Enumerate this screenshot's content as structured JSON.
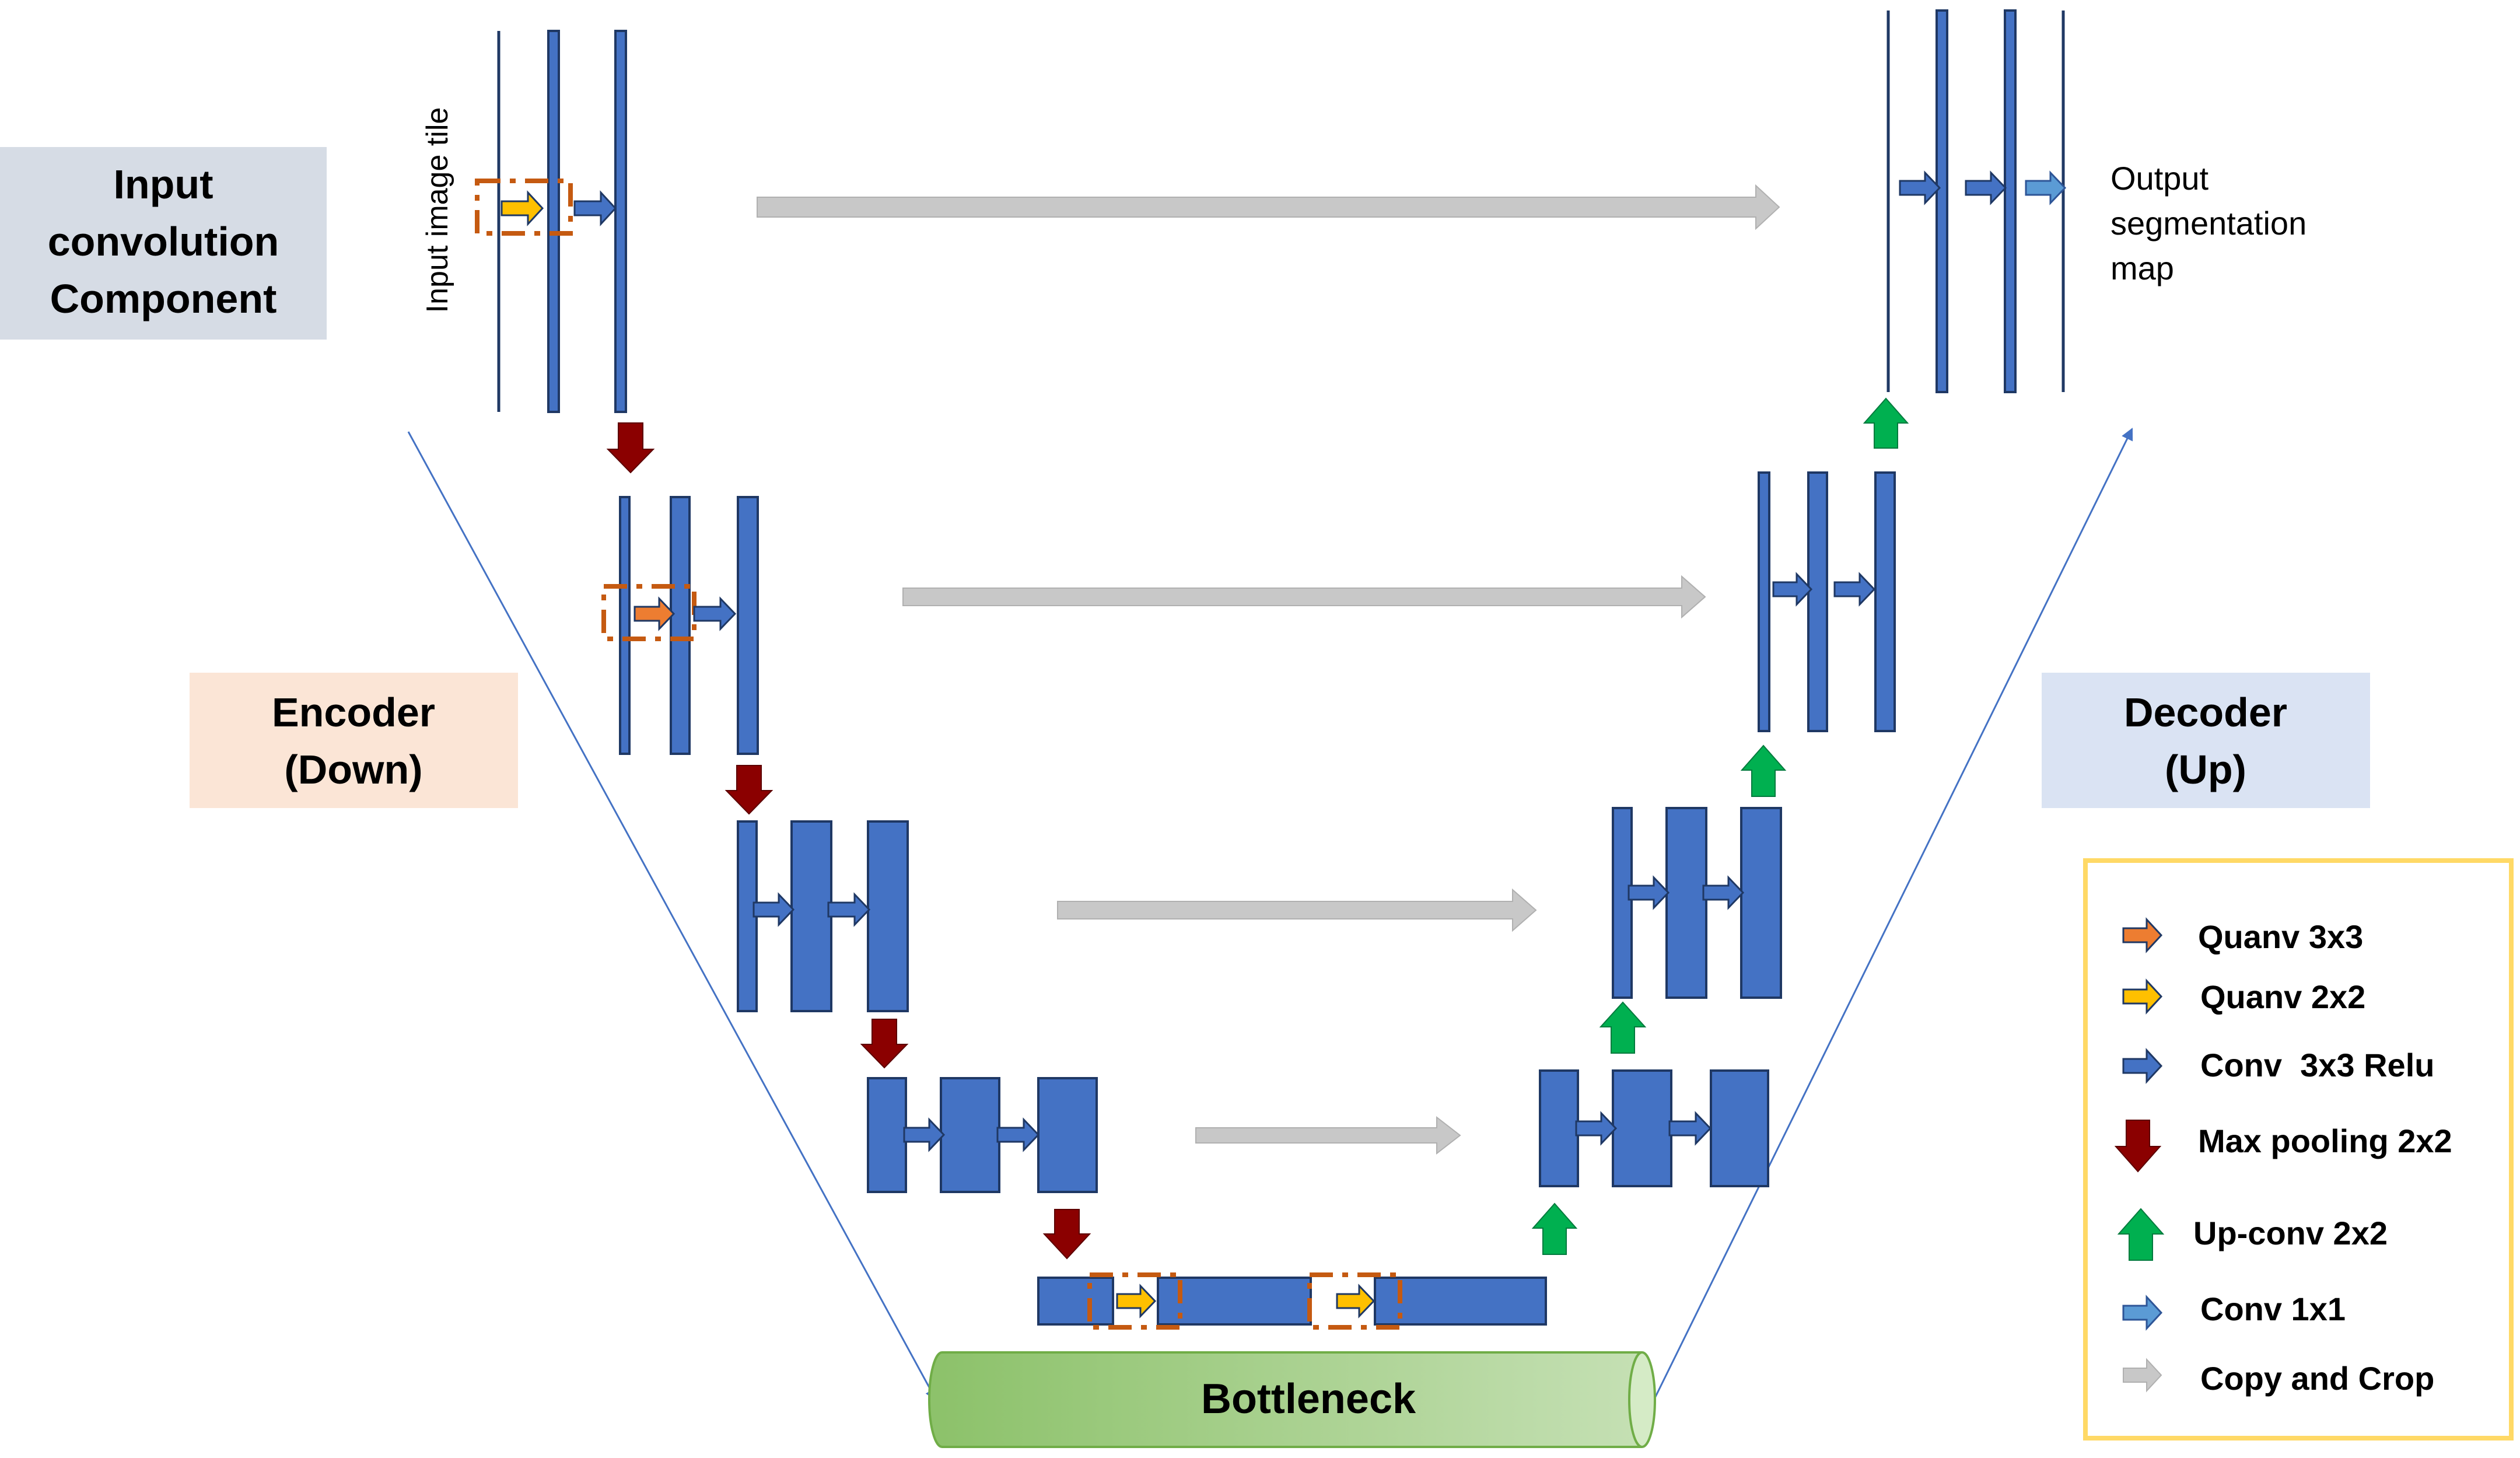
{
  "labels": {
    "input_component": [
      "Input",
      "convolution",
      "Component"
    ],
    "encoder": [
      "Encoder",
      "(Down)"
    ],
    "decoder": [
      "Decoder",
      "(Up)"
    ],
    "input_tile": "Input image tile",
    "output": [
      "Output",
      "segmentation",
      "map"
    ],
    "bottleneck": "Bottleneck"
  },
  "legend": [
    {
      "icon": "quanv-3x3-arrow-icon",
      "label": "Quanv 3x3"
    },
    {
      "icon": "quanv-2x2-arrow-icon",
      "label": "Quanv 2x2"
    },
    {
      "icon": "conv-3x3-relu-arrow-icon",
      "label": "Conv  3x3 Relu"
    },
    {
      "icon": "max-pooling-arrow-icon",
      "label": "Max pooling 2x2"
    },
    {
      "icon": "up-conv-arrow-icon",
      "label": "Up-conv 2x2"
    },
    {
      "icon": "conv-1x1-arrow-icon",
      "label": "Conv 1x1"
    },
    {
      "icon": "copy-and-crop-arrow-icon",
      "label": "Copy and Crop"
    }
  ],
  "colors": {
    "feature_map": "#4472C4",
    "feature_map_stroke": "#1F3864",
    "quanv_3x3": "#ED7D31",
    "quanv_2x2": "#FFC000",
    "max_pooling": "#8B0000",
    "up_conv": "#00B050",
    "conv_1x1": "#5B9BD5",
    "copy_crop": "#C8C8C8",
    "input_panel": "#D6DCE5",
    "encoder_panel": "#FBE5D6",
    "decoder_panel": "#DAE3F3",
    "legend_border": "#FFD966",
    "bottleneck": "#A9D18E"
  }
}
